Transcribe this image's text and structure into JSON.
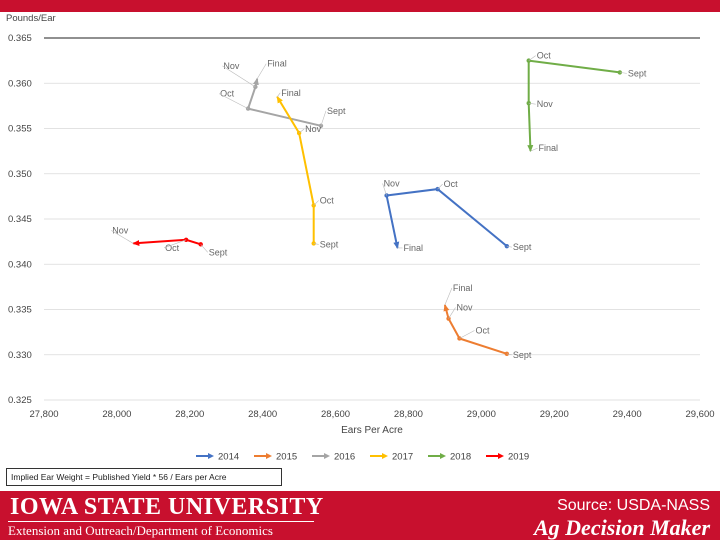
{
  "chart_data": {
    "type": "line",
    "ylabel": "Pounds/Ear",
    "xlabel": "Ears Per Acre",
    "xlim": [
      27800,
      29600
    ],
    "ylim": [
      0.325,
      0.365
    ],
    "xticks": [
      "27,800",
      "28,000",
      "28,200",
      "28,400",
      "28,600",
      "28,800",
      "29,000",
      "29,200",
      "29,400",
      "29,600"
    ],
    "yticks": [
      "0.325",
      "0.330",
      "0.335",
      "0.340",
      "0.345",
      "0.350",
      "0.355",
      "0.360",
      "0.365"
    ],
    "grid": "horizontal",
    "legend_position": "bottom",
    "series": [
      {
        "name": "2014",
        "color": "#4472c4",
        "points": [
          {
            "x": 29070,
            "y": 0.342,
            "label": "Sept"
          },
          {
            "x": 28880,
            "y": 0.3483,
            "label": "Oct"
          },
          {
            "x": 28740,
            "y": 0.3476,
            "label": "Nov"
          },
          {
            "x": 28770,
            "y": 0.3418,
            "label": "Final"
          }
        ]
      },
      {
        "name": "2015",
        "color": "#ed7d31",
        "points": [
          {
            "x": 29070,
            "y": 0.3301,
            "label": "Sept"
          },
          {
            "x": 28940,
            "y": 0.3318,
            "label": "Oct"
          },
          {
            "x": 28910,
            "y": 0.334,
            "label": "Nov"
          },
          {
            "x": 28900,
            "y": 0.3355,
            "label": "Final"
          }
        ]
      },
      {
        "name": "2016",
        "color": "#a5a5a5",
        "points": [
          {
            "x": 28560,
            "y": 0.3553,
            "label": "Sept"
          },
          {
            "x": 28360,
            "y": 0.3572,
            "label": "Oct"
          },
          {
            "x": 28380,
            "y": 0.3596,
            "label": "Nov"
          },
          {
            "x": 28385,
            "y": 0.3605,
            "label": "Final"
          }
        ]
      },
      {
        "name": "2017",
        "color": "#ffc000",
        "points": [
          {
            "x": 28540,
            "y": 0.3423,
            "label": "Sept"
          },
          {
            "x": 28540,
            "y": 0.3465,
            "label": "Oct"
          },
          {
            "x": 28500,
            "y": 0.3545,
            "label": "Nov"
          },
          {
            "x": 28440,
            "y": 0.3585,
            "label": "Final"
          }
        ]
      },
      {
        "name": "2018",
        "color": "#70ad47",
        "points": [
          {
            "x": 29380,
            "y": 0.3612,
            "label": "Sept"
          },
          {
            "x": 29130,
            "y": 0.3625,
            "label": "Oct"
          },
          {
            "x": 29130,
            "y": 0.3578,
            "label": "Nov"
          },
          {
            "x": 29135,
            "y": 0.3525,
            "label": "Final"
          }
        ]
      },
      {
        "name": "2019",
        "color": "#ff0000",
        "points": [
          {
            "x": 28230,
            "y": 0.3422,
            "label": "Sept"
          },
          {
            "x": 28190,
            "y": 0.3427,
            "label": "Oct"
          },
          {
            "x": 28045,
            "y": 0.3423,
            "label": "Nov"
          }
        ]
      }
    ]
  },
  "note": "Implied Ear Weight  =  Published Yield * 56 / Ears per Acre",
  "footer": {
    "university": "IOWA STATE UNIVERSITY",
    "extension": "Extension and Outreach/Department of Economics",
    "source": "Source: USDA-NASS",
    "brand": "Ag Decision Maker"
  }
}
